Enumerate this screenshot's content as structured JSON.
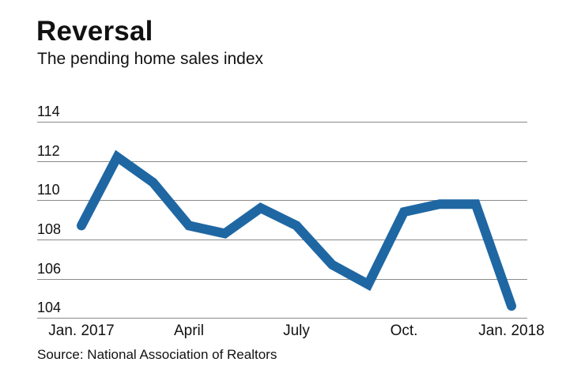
{
  "header": {
    "title": "Reversal",
    "subtitle": "The pending home sales index"
  },
  "footer": {
    "source": "Source: National Association of Realtors"
  },
  "colors": {
    "line": "#1f67a3",
    "grid": "#8a8a8a",
    "text": "#111111"
  },
  "axis": {
    "y_ticks": [
      "114",
      "112",
      "110",
      "108",
      "106",
      "104"
    ],
    "x_ticks": [
      "Jan. 2017",
      "April",
      "July",
      "Oct.",
      "Jan. 2018"
    ]
  },
  "chart_data": {
    "type": "line",
    "title": "Reversal",
    "subtitle": "The pending home sales index",
    "xlabel": "",
    "ylabel": "",
    "x": [
      "Jan. 2017",
      "Feb. 2017",
      "Mar. 2017",
      "Apr. 2017",
      "May 2017",
      "Jun. 2017",
      "Jul. 2017",
      "Aug. 2017",
      "Sep. 2017",
      "Oct. 2017",
      "Nov. 2017",
      "Dec. 2017",
      "Jan. 2018"
    ],
    "series": [
      {
        "name": "Pending home sales index",
        "values": [
          108.7,
          112.2,
          110.9,
          108.7,
          108.3,
          109.6,
          108.7,
          106.7,
          105.7,
          109.4,
          109.8,
          109.8,
          104.6
        ]
      }
    ],
    "x_tick_labels": [
      "Jan. 2017",
      "April",
      "July",
      "Oct.",
      "Jan. 2018"
    ],
    "y_tick_labels": [
      104,
      106,
      108,
      110,
      112,
      114
    ],
    "ylim": [
      104,
      114
    ],
    "grid": true,
    "legend": "none",
    "source": "Source: National Association of Realtors"
  }
}
